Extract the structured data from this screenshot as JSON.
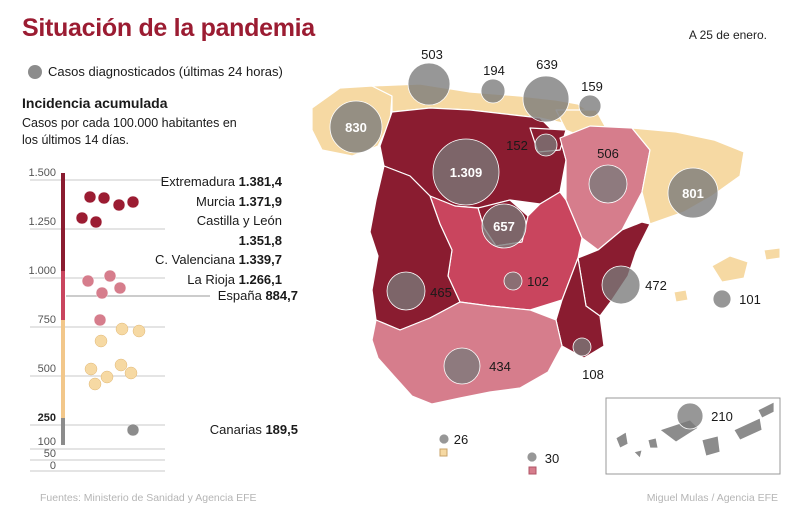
{
  "title": "Situación de la pandemia",
  "date": "A 25 de enero.",
  "legend": {
    "label": "Casos diagnosticados (últimas 24 horas)"
  },
  "incidence": {
    "title": "Incidencia acumulada",
    "subtitle": "Casos por cada 100.000 habitantes en los últimos 14 días.",
    "axis_ticks": [
      "1.500",
      "1.250",
      "1.000",
      "750",
      "500",
      "250",
      "100",
      "50",
      "0"
    ],
    "top": [
      {
        "name": "Extremadura",
        "value": "1.381,4"
      },
      {
        "name": "Murcia",
        "value": "1.371,9"
      },
      {
        "name": "Castilla y León",
        "value": "1.351,8"
      },
      {
        "name": "C. Valenciana",
        "value": "1.339,7"
      },
      {
        "name": "La Rioja",
        "value": "1.266,1"
      }
    ],
    "spain": {
      "name": "España",
      "value": "884,7"
    },
    "canarias": {
      "name": "Canarias",
      "value": "189,5"
    }
  },
  "colors": {
    "title": "#9b1c32",
    "dark": "#8a1c30",
    "mid": "#c9455e",
    "light": "#d67d8c",
    "pale": "#f6d9a3",
    "bubble": "#7a7a7a"
  },
  "bubbles": [
    {
      "label": "503"
    },
    {
      "label": "194"
    },
    {
      "label": "639"
    },
    {
      "label": "159"
    },
    {
      "label": "830"
    },
    {
      "label": "152"
    },
    {
      "label": "1.309"
    },
    {
      "label": "506"
    },
    {
      "label": "801"
    },
    {
      "label": "657"
    },
    {
      "label": "102"
    },
    {
      "label": "472"
    },
    {
      "label": "101"
    },
    {
      "label": "465"
    },
    {
      "label": "434"
    },
    {
      "label": "108"
    },
    {
      "label": "210"
    },
    {
      "label": "26"
    },
    {
      "label": "30"
    }
  ],
  "footer": {
    "source": "Fuentes: Ministerio de Sanidad y Agencia EFE",
    "credit": "Miguel Mulas  / Agencia EFE"
  }
}
